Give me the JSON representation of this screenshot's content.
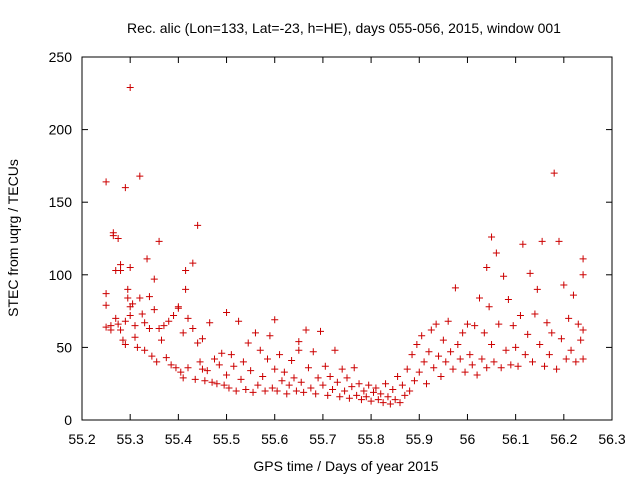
{
  "chart_data": {
    "type": "scatter",
    "title": "Rec. alic (Lon=133, Lat=-23, h=HE), days 055-056, 2015, window 001",
    "xlabel": "GPS time / Days of year 2015",
    "ylabel": "STEC from uqrg / TECUs",
    "xlim": [
      55.2,
      56.3
    ],
    "ylim": [
      0,
      250
    ],
    "xticks": [
      55.2,
      55.3,
      55.4,
      55.5,
      55.6,
      55.7,
      55.8,
      55.9,
      56.0,
      56.1,
      56.2,
      56.3
    ],
    "xtick_labels": [
      "55.2",
      "55.3",
      "55.4",
      "55.5",
      "55.6",
      "55.7",
      "55.8",
      "55.9",
      "56",
      "56.1",
      "56.2",
      "56.3"
    ],
    "yticks": [
      0,
      50,
      100,
      150,
      200,
      250
    ],
    "ytick_labels": [
      "0",
      "50",
      "100",
      "150",
      "200",
      "250"
    ],
    "grid": false,
    "marker": "+",
    "marker_color": "#cc0000",
    "points": [
      [
        55.25,
        164
      ],
      [
        55.25,
        87
      ],
      [
        55.25,
        79
      ],
      [
        55.25,
        64
      ],
      [
        55.26,
        62
      ],
      [
        55.26,
        65
      ],
      [
        55.265,
        129
      ],
      [
        55.265,
        127
      ],
      [
        55.27,
        103
      ],
      [
        55.275,
        125
      ],
      [
        55.28,
        107
      ],
      [
        55.28,
        103
      ],
      [
        55.27,
        70
      ],
      [
        55.275,
        66
      ],
      [
        55.28,
        62
      ],
      [
        55.285,
        55
      ],
      [
        55.29,
        52
      ],
      [
        55.29,
        68
      ],
      [
        55.29,
        160
      ],
      [
        55.295,
        90
      ],
      [
        55.295,
        84
      ],
      [
        55.3,
        229
      ],
      [
        55.3,
        105
      ],
      [
        55.3,
        78
      ],
      [
        55.3,
        72
      ],
      [
        55.305,
        80
      ],
      [
        55.31,
        65
      ],
      [
        55.31,
        57
      ],
      [
        55.315,
        50
      ],
      [
        55.32,
        168
      ],
      [
        55.32,
        84
      ],
      [
        55.325,
        73
      ],
      [
        55.33,
        67
      ],
      [
        55.33,
        48
      ],
      [
        55.335,
        111
      ],
      [
        55.34,
        85
      ],
      [
        55.34,
        63
      ],
      [
        55.345,
        44
      ],
      [
        55.35,
        97
      ],
      [
        55.35,
        76
      ],
      [
        55.355,
        40
      ],
      [
        55.36,
        123
      ],
      [
        55.36,
        63
      ],
      [
        55.365,
        55
      ],
      [
        55.37,
        65
      ],
      [
        55.375,
        43
      ],
      [
        55.38,
        68
      ],
      [
        55.385,
        38
      ],
      [
        55.39,
        72
      ],
      [
        55.395,
        36
      ],
      [
        55.4,
        78
      ],
      [
        55.4,
        77
      ],
      [
        55.405,
        33
      ],
      [
        55.41,
        60
      ],
      [
        55.41,
        29
      ],
      [
        55.415,
        103
      ],
      [
        55.415,
        90
      ],
      [
        55.42,
        70
      ],
      [
        55.42,
        36
      ],
      [
        55.43,
        108
      ],
      [
        55.43,
        63
      ],
      [
        55.435,
        28
      ],
      [
        55.44,
        134
      ],
      [
        55.44,
        53
      ],
      [
        55.445,
        40
      ],
      [
        55.45,
        35
      ],
      [
        55.45,
        56
      ],
      [
        55.455,
        27
      ],
      [
        55.46,
        34
      ],
      [
        55.465,
        67
      ],
      [
        55.47,
        26
      ],
      [
        55.475,
        42
      ],
      [
        55.48,
        25
      ],
      [
        55.485,
        38
      ],
      [
        55.49,
        46
      ],
      [
        55.495,
        24
      ],
      [
        55.5,
        74
      ],
      [
        55.5,
        31
      ],
      [
        55.505,
        22
      ],
      [
        55.51,
        45
      ],
      [
        55.515,
        37
      ],
      [
        55.52,
        20
      ],
      [
        55.525,
        68
      ],
      [
        55.53,
        28
      ],
      [
        55.535,
        40
      ],
      [
        55.54,
        21
      ],
      [
        55.545,
        53
      ],
      [
        55.55,
        34
      ],
      [
        55.555,
        19
      ],
      [
        55.56,
        60
      ],
      [
        55.565,
        24
      ],
      [
        55.57,
        48
      ],
      [
        55.575,
        30
      ],
      [
        55.58,
        20
      ],
      [
        55.585,
        42
      ],
      [
        55.59,
        58
      ],
      [
        55.595,
        22
      ],
      [
        55.6,
        69
      ],
      [
        55.6,
        35
      ],
      [
        55.605,
        20
      ],
      [
        55.61,
        45
      ],
      [
        55.615,
        27
      ],
      [
        55.62,
        33
      ],
      [
        55.625,
        18
      ],
      [
        55.63,
        24
      ],
      [
        55.635,
        41
      ],
      [
        55.64,
        29
      ],
      [
        55.645,
        20
      ],
      [
        55.65,
        54
      ],
      [
        55.65,
        48
      ],
      [
        55.655,
        26
      ],
      [
        55.66,
        19
      ],
      [
        55.665,
        62
      ],
      [
        55.67,
        36
      ],
      [
        55.675,
        22
      ],
      [
        55.68,
        47
      ],
      [
        55.685,
        18
      ],
      [
        55.69,
        29
      ],
      [
        55.695,
        61
      ],
      [
        55.7,
        24
      ],
      [
        55.705,
        37
      ],
      [
        55.71,
        17
      ],
      [
        55.715,
        30
      ],
      [
        55.72,
        21
      ],
      [
        55.725,
        48
      ],
      [
        55.73,
        26
      ],
      [
        55.735,
        16
      ],
      [
        55.74,
        35
      ],
      [
        55.745,
        20
      ],
      [
        55.75,
        29
      ],
      [
        55.755,
        15
      ],
      [
        55.76,
        23
      ],
      [
        55.765,
        36
      ],
      [
        55.77,
        17
      ],
      [
        55.775,
        25
      ],
      [
        55.78,
        14
      ],
      [
        55.785,
        20
      ],
      [
        55.79,
        16
      ],
      [
        55.795,
        24
      ],
      [
        55.8,
        13
      ],
      [
        55.805,
        19
      ],
      [
        55.81,
        22
      ],
      [
        55.815,
        14
      ],
      [
        55.82,
        18
      ],
      [
        55.825,
        12
      ],
      [
        55.83,
        25
      ],
      [
        55.835,
        16
      ],
      [
        55.84,
        11
      ],
      [
        55.845,
        21
      ],
      [
        55.85,
        14
      ],
      [
        55.855,
        30
      ],
      [
        55.86,
        12
      ],
      [
        55.865,
        24
      ],
      [
        55.87,
        17
      ],
      [
        55.875,
        35
      ],
      [
        55.88,
        20
      ],
      [
        55.885,
        45
      ],
      [
        55.89,
        27
      ],
      [
        55.895,
        52
      ],
      [
        55.9,
        33
      ],
      [
        55.905,
        58
      ],
      [
        55.91,
        40
      ],
      [
        55.915,
        25
      ],
      [
        55.92,
        47
      ],
      [
        55.925,
        62
      ],
      [
        55.93,
        36
      ],
      [
        55.935,
        66
      ],
      [
        55.94,
        44
      ],
      [
        55.945,
        30
      ],
      [
        55.95,
        55
      ],
      [
        55.955,
        40
      ],
      [
        55.96,
        68
      ],
      [
        55.965,
        47
      ],
      [
        55.97,
        35
      ],
      [
        55.975,
        91
      ],
      [
        55.98,
        52
      ],
      [
        55.985,
        42
      ],
      [
        55.99,
        60
      ],
      [
        55.995,
        33
      ],
      [
        56.0,
        66
      ],
      [
        56.005,
        45
      ],
      [
        56.01,
        38
      ],
      [
        56.015,
        65
      ],
      [
        56.02,
        31
      ],
      [
        56.025,
        84
      ],
      [
        56.03,
        42
      ],
      [
        56.035,
        60
      ],
      [
        56.04,
        105
      ],
      [
        56.04,
        36
      ],
      [
        56.045,
        78
      ],
      [
        56.05,
        126
      ],
      [
        56.05,
        52
      ],
      [
        56.055,
        40
      ],
      [
        56.06,
        115
      ],
      [
        56.065,
        66
      ],
      [
        56.07,
        36
      ],
      [
        56.075,
        99
      ],
      [
        56.08,
        48
      ],
      [
        56.085,
        83
      ],
      [
        56.09,
        38
      ],
      [
        56.095,
        65
      ],
      [
        56.1,
        50
      ],
      [
        56.105,
        37
      ],
      [
        56.11,
        72
      ],
      [
        56.115,
        121
      ],
      [
        56.12,
        45
      ],
      [
        56.125,
        59
      ],
      [
        56.13,
        101
      ],
      [
        56.135,
        40
      ],
      [
        56.14,
        73
      ],
      [
        56.145,
        90
      ],
      [
        56.15,
        52
      ],
      [
        56.155,
        123
      ],
      [
        56.16,
        37
      ],
      [
        56.165,
        67
      ],
      [
        56.17,
        45
      ],
      [
        56.175,
        60
      ],
      [
        56.18,
        170
      ],
      [
        56.185,
        35
      ],
      [
        56.19,
        123
      ],
      [
        56.195,
        56
      ],
      [
        56.2,
        93
      ],
      [
        56.205,
        42
      ],
      [
        56.21,
        70
      ],
      [
        56.215,
        48
      ],
      [
        56.22,
        86
      ],
      [
        56.225,
        40
      ],
      [
        56.23,
        66
      ],
      [
        56.235,
        55
      ],
      [
        56.24,
        111
      ],
      [
        56.24,
        100
      ],
      [
        56.24,
        62
      ],
      [
        56.24,
        42
      ]
    ]
  }
}
